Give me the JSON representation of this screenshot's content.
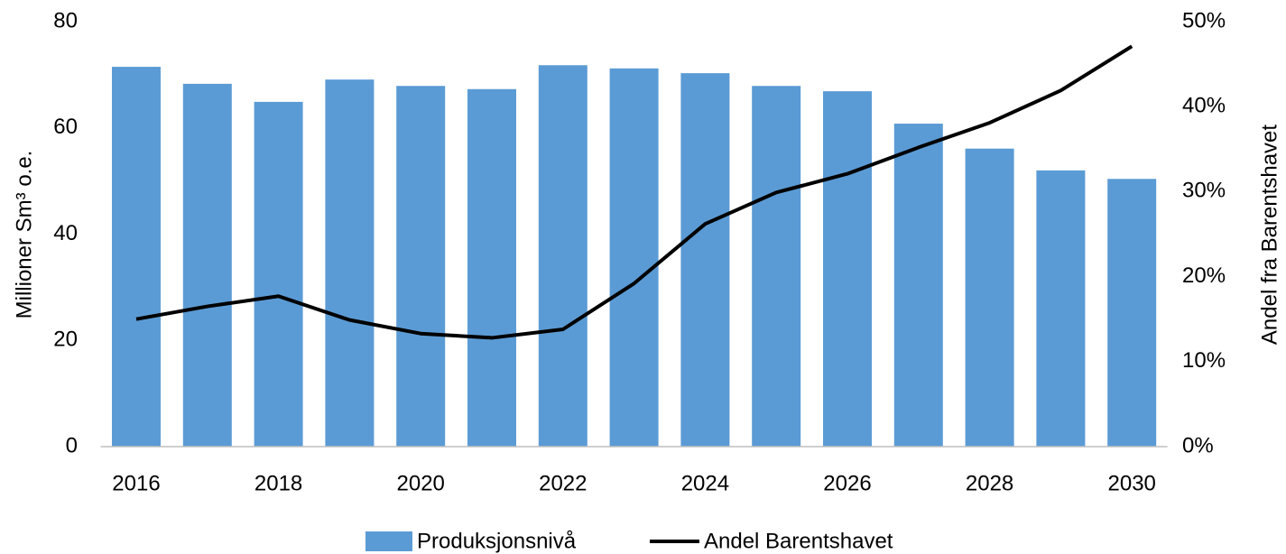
{
  "chart_data": {
    "type": "bar_line",
    "categories": [
      "2016",
      null,
      "2018",
      null,
      "2020",
      null,
      "2022",
      null,
      "2024",
      null,
      "2026",
      null,
      "2028",
      null,
      "2030"
    ],
    "series": [
      {
        "name": "Produksjonsnivå",
        "type": "bar",
        "color": "#5b9bd5",
        "axis": "y",
        "values": [
          71.5,
          68.3,
          64.9,
          69.1,
          67.9,
          67.3,
          71.8,
          71.2,
          70.3,
          67.9,
          66.9,
          60.8,
          56.1,
          52.0,
          50.4
        ]
      },
      {
        "name": "Andel Barentshavet",
        "type": "line",
        "color": "#000000",
        "axis": "y2",
        "values": [
          15.0,
          16.5,
          17.7,
          14.9,
          13.3,
          12.8,
          13.8,
          19.2,
          26.2,
          29.9,
          32.1,
          35.2,
          38.1,
          41.9,
          47.1
        ]
      }
    ],
    "ylabel": "Millioner Sm³ o.e.",
    "y2label": "Andel fra Barentshavet",
    "ylim": [
      0,
      80
    ],
    "yticks": [
      0,
      20,
      40,
      60,
      80
    ],
    "y2lim": [
      0,
      50
    ],
    "y2ticks": [
      {
        "value": 0,
        "label": "0%"
      },
      {
        "value": 10,
        "label": "10%"
      },
      {
        "value": 20,
        "label": "20%"
      },
      {
        "value": 30,
        "label": "30%"
      },
      {
        "value": 40,
        "label": "40%"
      },
      {
        "value": 50,
        "label": "50%"
      }
    ],
    "legend": "bottom"
  }
}
